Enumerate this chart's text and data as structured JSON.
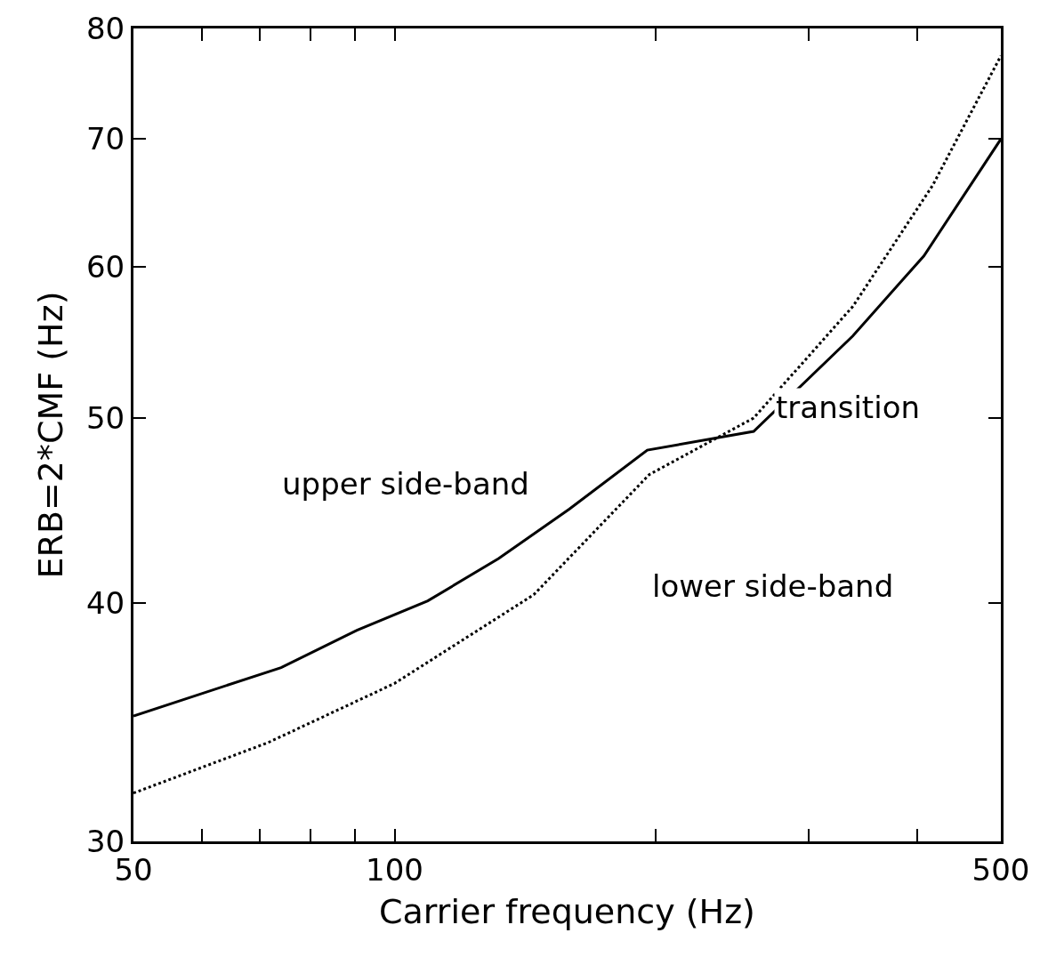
{
  "chart_data": {
    "type": "line",
    "xlabel": "Carrier frequency (Hz)",
    "ylabel": "ERB=2*CMF (Hz)",
    "log": "xy",
    "xlim": [
      50,
      500
    ],
    "ylim": [
      30,
      80
    ],
    "xticks": [
      50,
      {
        "value": 60,
        "label": null
      },
      {
        "value": 70,
        "label": null
      },
      {
        "value": 80,
        "label": null
      },
      {
        "value": 90,
        "label": null
      },
      100,
      {
        "value": 200,
        "label": null
      },
      {
        "value": 300,
        "label": null
      },
      {
        "value": 400,
        "label": null
      },
      500
    ],
    "yticks": [
      30,
      40,
      50,
      60,
      70,
      80
    ],
    "series": [
      {
        "color": "#000000",
        "line_style": "solid",
        "x": [
          50,
          74,
          90.5,
          109.2,
          131.8,
          159.1,
          195.6,
          259.4,
          337.5,
          407.6,
          500
        ],
        "values": [
          34.9,
          37.0,
          38.7,
          40.1,
          42.2,
          44.8,
          48.1,
          49.2,
          55.2,
          60.8,
          70.0
        ]
      },
      {
        "color": "#000000",
        "line_style": "dotted",
        "x": [
          50,
          71.5,
          100,
          144.7,
          196.6,
          259.4,
          337.5,
          417.2,
          500
        ],
        "values": [
          31.8,
          33.8,
          36.3,
          40.4,
          46.7,
          50.0,
          57.2,
          66.2,
          77.4
        ]
      }
    ],
    "annotations": [
      "upper side-band",
      "transition",
      "lower side-band"
    ]
  }
}
